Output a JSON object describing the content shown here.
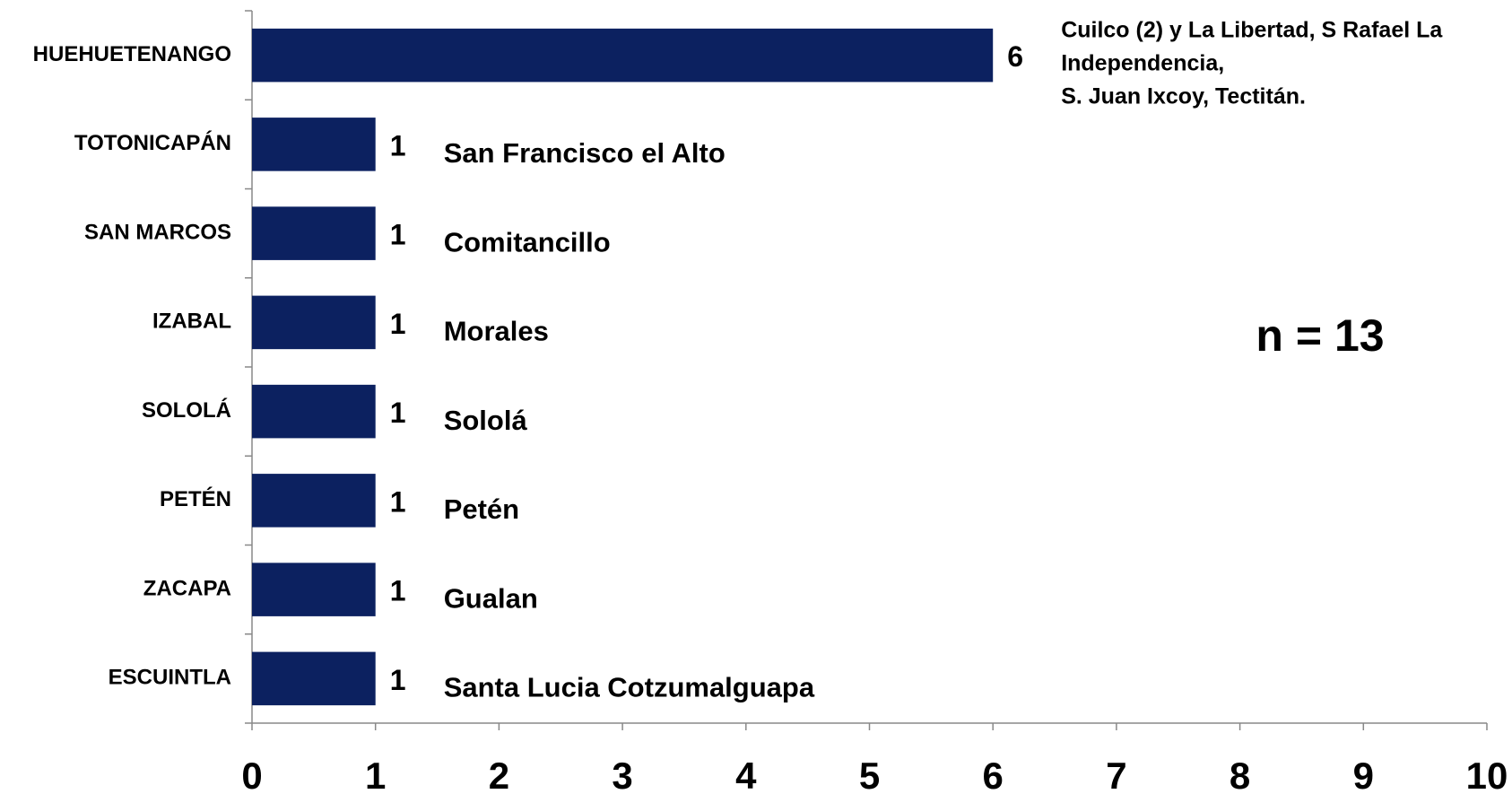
{
  "chart_data": {
    "type": "bar",
    "orientation": "horizontal",
    "categories": [
      "HUEHUETENANGO",
      "TOTONICAPÁN",
      "SAN MARCOS",
      "IZABAL",
      "SOLOLÁ",
      "PETÉN",
      "ZACAPA",
      "ESCUINTLA"
    ],
    "values": [
      6,
      1,
      1,
      1,
      1,
      1,
      1,
      1
    ],
    "color": "#0c2160",
    "notes": [
      [
        "Cuilco (2) y La Libertad, S Rafael La",
        "Independencia,",
        "S. Juan Ixcoy, Tectitán."
      ],
      [
        "San Francisco el Alto"
      ],
      [
        "Comitancillo"
      ],
      [
        "Morales"
      ],
      [
        "Sololá"
      ],
      [
        "Petén"
      ],
      [
        "Gualan"
      ],
      [
        "Santa Lucia Cotzumalguapa"
      ]
    ],
    "annotation": "n = 13",
    "xlim": [
      0,
      10
    ],
    "xticks": [
      0,
      1,
      2,
      3,
      4,
      5,
      6,
      7,
      8,
      9,
      10
    ],
    "grid": false
  }
}
